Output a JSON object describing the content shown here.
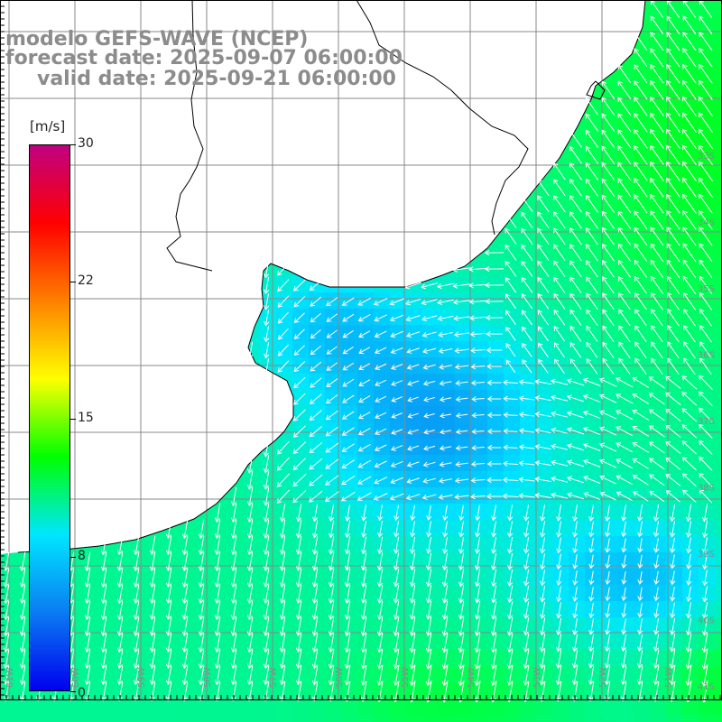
{
  "title": {
    "line1": "modelo GEFS-WAVE (NCEP)",
    "line2": "forecast date: 2025-09-07 06:00:00",
    "line3": "valid date: 2025-09-21 06:00:00"
  },
  "colorbar": {
    "unit": "[m/s]",
    "ticks": [
      "30",
      "22",
      "15",
      "8",
      "0"
    ],
    "tick_values": [
      30,
      22,
      15,
      8,
      0
    ],
    "range": [
      0,
      30
    ],
    "colors": [
      "#0000ee",
      "#0a7cf2",
      "#00e6ff",
      "#00ff00",
      "#ffff00",
      "#ff8000",
      "#ff0000",
      "#c00080"
    ]
  },
  "map": {
    "longitude_labels": [
      "61W",
      "60W",
      "59W",
      "58W",
      "57W",
      "56W",
      "55W",
      "54W",
      "53W",
      "52W",
      "51W"
    ],
    "latitude_labels": [
      "33S",
      "34S",
      "35S",
      "36S",
      "37S",
      "38S",
      "39S",
      "40S",
      "41S"
    ],
    "land_color": "#ffffff",
    "grid_color": "#888888",
    "coast_color": "#000000",
    "arrow_color": "#ffffff"
  }
}
